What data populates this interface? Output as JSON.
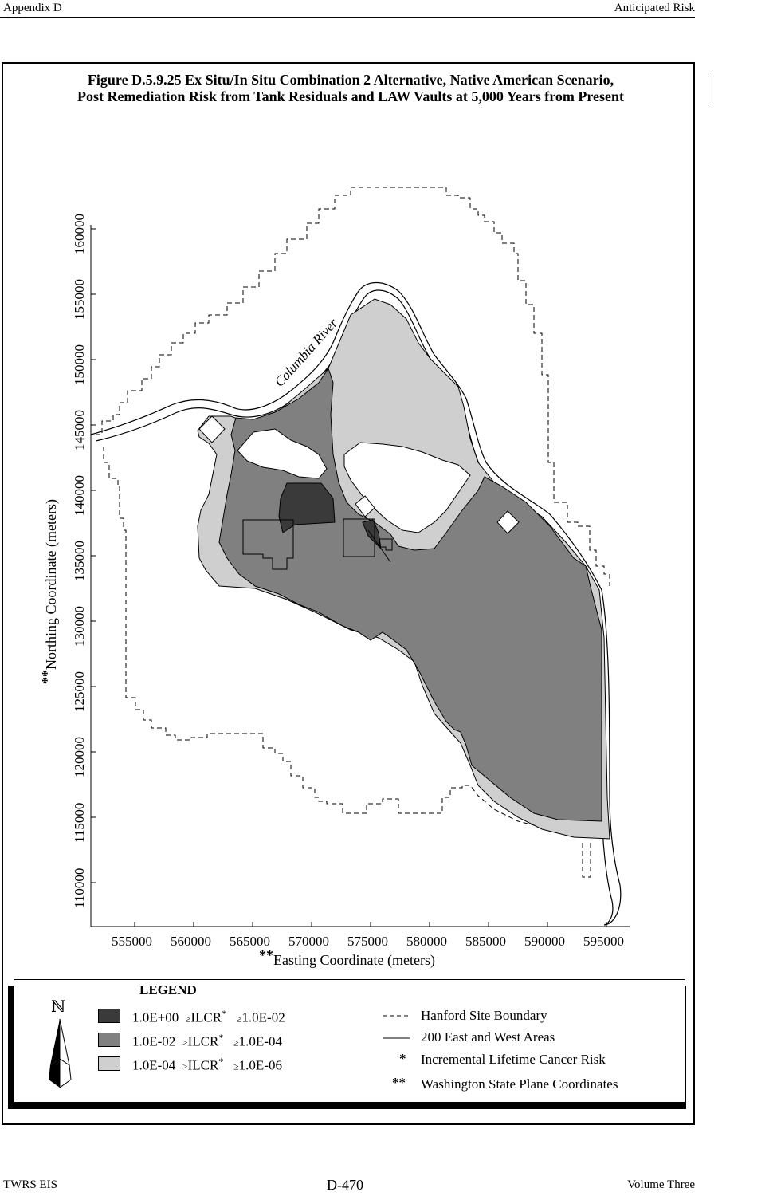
{
  "header": {
    "left": "Appendix D",
    "right": "Anticipated Risk"
  },
  "figure": {
    "title_line1": "Figure D.5.9.25  Ex Situ/In Situ Combination 2 Alternative, Native American Scenario,",
    "title_line2": "Post Remediation Risk from Tank Residuals and LAW Vaults at 5,000 Years from Present"
  },
  "map": {
    "river_label": "Columbia River",
    "y_axis": {
      "prefix": "**",
      "label": "Northing Coordinate (meters)",
      "ticks": [
        "110000",
        "115000",
        "120000",
        "125000",
        "130000",
        "135000",
        "140000",
        "145000",
        "150000",
        "155000",
        "160000"
      ]
    },
    "x_axis": {
      "prefix": "**",
      "label": "Easting Coordinate (meters)",
      "ticks": [
        "555000",
        "560000",
        "565000",
        "570000",
        "575000",
        "580000",
        "585000",
        "590000",
        "595000"
      ]
    },
    "colors": {
      "high": "#3a3a3a",
      "medium": "#808080",
      "low": "#cfcfcf"
    }
  },
  "legend": {
    "title": "LEGEND",
    "north_symbol": "ℕ",
    "ranges": [
      {
        "upper": "1.0E+00",
        "op1": "≥",
        "label": "ILCR",
        "mark": "*",
        "op2": "≥",
        "lower": "1.0E-02",
        "color": "#3a3a3a"
      },
      {
        "upper": "1.0E-02",
        "op1": ">",
        "label": "ILCR",
        "mark": "*",
        "op2": "≥",
        "lower": "1.0E-04",
        "color": "#808080"
      },
      {
        "upper": "1.0E-04",
        "op1": ">",
        "label": "ILCR",
        "mark": "*",
        "op2": "≥",
        "lower": "1.0E-06",
        "color": "#cfcfcf"
      }
    ],
    "symbols": [
      {
        "mark": "- - -",
        "text": "Hanford Site Boundary"
      },
      {
        "mark": "——",
        "text": "200 East and West Areas"
      },
      {
        "mark": "*",
        "text": "Incremental Lifetime Cancer Risk"
      },
      {
        "mark": "**",
        "text": "Washington State Plane Coordinates"
      }
    ]
  },
  "footer": {
    "left": "TWRS EIS",
    "center": "D-470",
    "right": "Volume Three"
  }
}
